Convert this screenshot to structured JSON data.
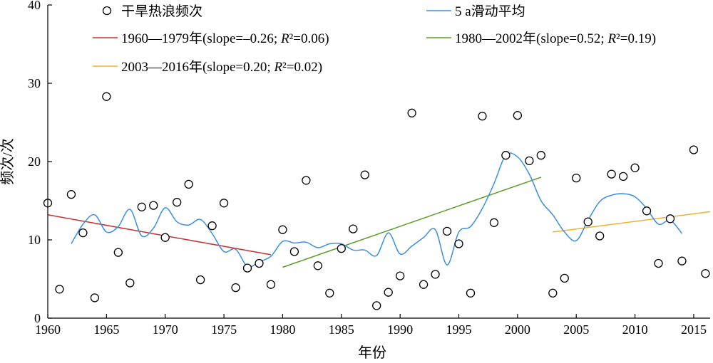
{
  "chart_data": {
    "type": "scatter",
    "xlabel": "年份",
    "ylabel": "频次/次",
    "xlim": [
      1960,
      2016.4
    ],
    "ylim": [
      0,
      40
    ],
    "xticks": [
      1960,
      1965,
      1970,
      1975,
      1980,
      1985,
      1990,
      1995,
      2000,
      2005,
      2010,
      2015
    ],
    "yticks": [
      0,
      10,
      20,
      30,
      40
    ],
    "grid": false,
    "legend": {
      "placement": "top",
      "items": [
        {
          "key": "points",
          "label": "干旱热浪频次",
          "marker": "circle"
        },
        {
          "key": "smooth",
          "label": "5 a滑动平均",
          "color": "#3b8ee8"
        },
        {
          "key": "trend1",
          "label_prefix": "1960—1979年(slope=–0.26; ",
          "label_r": "R",
          "label_suffix": "²=0.06)",
          "color": "#c83232"
        },
        {
          "key": "trend2",
          "label_prefix": "1980—2002年(slope=0.52; ",
          "label_r": "R",
          "label_suffix": "²=0.19)",
          "color": "#5a9e28"
        },
        {
          "key": "trend3",
          "label_prefix": "2003—2016年(slope=0.20; ",
          "label_r": "R",
          "label_suffix": "²=0.02)",
          "color": "#f0b030"
        }
      ]
    },
    "series": [
      {
        "name": "干旱热浪频次",
        "type": "scatter",
        "x": [
          1960,
          1961,
          1962,
          1963,
          1964,
          1965,
          1966,
          1967,
          1968,
          1969,
          1970,
          1971,
          1972,
          1973,
          1974,
          1975,
          1976,
          1977,
          1978,
          1979,
          1980,
          1981,
          1982,
          1983,
          1984,
          1985,
          1986,
          1987,
          1988,
          1989,
          1990,
          1991,
          1992,
          1993,
          1994,
          1995,
          1996,
          1997,
          1998,
          1999,
          2000,
          2001,
          2002,
          2003,
          2004,
          2005,
          2006,
          2007,
          2008,
          2009,
          2010,
          2011,
          2012,
          2013,
          2014,
          2015,
          2016
        ],
        "y": [
          14.7,
          3.7,
          15.8,
          10.9,
          2.6,
          28.3,
          8.4,
          4.5,
          14.2,
          14.4,
          10.3,
          14.8,
          17.1,
          4.9,
          11.8,
          14.7,
          3.9,
          6.4,
          7.0,
          4.3,
          11.3,
          8.5,
          17.6,
          6.7,
          3.2,
          8.9,
          11.4,
          18.3,
          1.6,
          3.3,
          5.4,
          26.2,
          4.3,
          5.6,
          11.1,
          9.5,
          3.2,
          25.8,
          12.2,
          20.8,
          25.9,
          20.1,
          20.8,
          3.2,
          5.1,
          17.9,
          12.3,
          10.5,
          18.4,
          18.1,
          19.2,
          13.7,
          7.0,
          12.7,
          7.3,
          21.5,
          5.7
        ]
      },
      {
        "name": "5 a滑动平均",
        "type": "line",
        "color": "#3b8ee8",
        "x": [
          1962,
          1963,
          1964,
          1965,
          1966,
          1967,
          1968,
          1969,
          1970,
          1971,
          1972,
          1973,
          1974,
          1975,
          1976,
          1977,
          1978,
          1979,
          1980,
          1981,
          1982,
          1983,
          1984,
          1985,
          1986,
          1987,
          1988,
          1989,
          1990,
          1991,
          1992,
          1993,
          1994,
          1995,
          1996,
          1997,
          1998,
          1999,
          2000,
          2001,
          2002,
          2003,
          2004,
          2005,
          2006,
          2007,
          2008,
          2009,
          2010,
          2011,
          2012,
          2013,
          2014
        ],
        "y": [
          9.5,
          12.0,
          13.2,
          11.0,
          11.7,
          13.9,
          10.5,
          11.5,
          14.1,
          12.3,
          11.9,
          12.6,
          10.8,
          8.5,
          8.8,
          6.6,
          7.2,
          7.9,
          9.8,
          9.6,
          9.7,
          9.0,
          9.5,
          9.5,
          8.7,
          8.7,
          8.0,
          10.9,
          8.2,
          9.2,
          10.3,
          11.3,
          6.8,
          11.0,
          11.7,
          14.0,
          17.2,
          20.8,
          20.6,
          18.4,
          15.0,
          13.2,
          11.0,
          9.9,
          12.5,
          14.9,
          15.7,
          15.9,
          15.5,
          14.0,
          12.0,
          12.5,
          10.8
        ]
      },
      {
        "name": "1960—1979年",
        "type": "trend",
        "color": "#c83232",
        "x": [
          1960,
          1979
        ],
        "y": [
          13.2,
          8.1
        ]
      },
      {
        "name": "1980—2002年",
        "type": "trend",
        "color": "#5a9e28",
        "x": [
          1980,
          2002
        ],
        "y": [
          6.5,
          18.0
        ]
      },
      {
        "name": "2003—2016年",
        "type": "trend",
        "color": "#f0b030",
        "x": [
          2003,
          2016.4
        ],
        "y": [
          11.0,
          13.6
        ]
      }
    ]
  }
}
